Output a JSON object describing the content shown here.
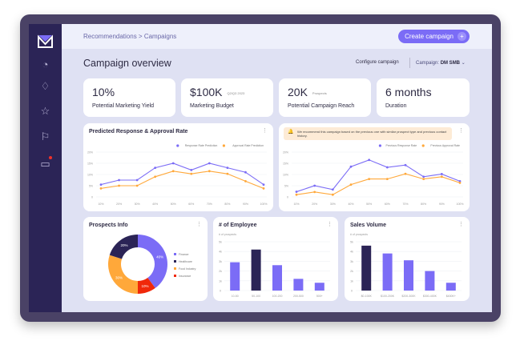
{
  "header": {
    "breadcrumb": "Recommendations > Campaigns",
    "create_label": "Create campaign",
    "create_icon": "plus-icon"
  },
  "page": {
    "title": "Campaign overview",
    "configure": "Configure campaign",
    "campaign_label": "Campaign:",
    "campaign_value": "DM SMB"
  },
  "sidebar": {
    "icons": [
      "logo",
      "speedometer-icon",
      "gem-icon",
      "star-icon",
      "flag-icon",
      "chat-icon"
    ],
    "notification_color": "#f0322a"
  },
  "kpis": [
    {
      "value": "10%",
      "sub": "",
      "label": "Potential Marketing Yield"
    },
    {
      "value": "$100K",
      "sub": "Q2/Q3 2023",
      "label": "Marketing Budget"
    },
    {
      "value": "20K",
      "sub": "Prospects",
      "label": "Potential Campaign Reach"
    },
    {
      "value": "6 months",
      "sub": "",
      "label": "Duration"
    }
  ],
  "recommendation": "We recommend this campaign based on the previous one with similar prospect type and previous contact history.",
  "colors": {
    "purple": "#7b6cf6",
    "orange": "#ffa83a",
    "dark": "#2b2456",
    "red": "#f0280a"
  },
  "chart_data": [
    {
      "type": "line",
      "title": "Predicted Response & Approval Rate",
      "categories": [
        "10%",
        "20%",
        "30%",
        "40%",
        "50%",
        "60%",
        "70%",
        "80%",
        "90%",
        "100%"
      ],
      "yticks": [
        "0",
        "5%",
        "10%",
        "15%",
        "20%"
      ],
      "ylim": [
        0,
        20
      ],
      "legend": "top-right",
      "series": [
        {
          "name": "Response Rate Prediction",
          "color": "#7b6cf6",
          "values": [
            5.5,
            7.5,
            7.5,
            13,
            15,
            12,
            15,
            13,
            11,
            5.5
          ]
        },
        {
          "name": "Approval Rate Prediction",
          "color": "#ffa83a",
          "values": [
            3.8,
            5,
            5,
            9,
            11.5,
            10.3,
            11.5,
            10.3,
            7,
            3.8
          ]
        }
      ]
    },
    {
      "type": "line",
      "title": "",
      "categories": [
        "10%",
        "20%",
        "30%",
        "40%",
        "50%",
        "60%",
        "70%",
        "80%",
        "90%",
        "100%"
      ],
      "yticks": [
        "0",
        "5%",
        "10%",
        "15%",
        "20%"
      ],
      "ylim": [
        0,
        20
      ],
      "legend": "top-right",
      "series": [
        {
          "name": "Previous Response Rate",
          "color": "#7b6cf6",
          "values": [
            2.3,
            5,
            3.3,
            13.5,
            16.5,
            13.2,
            14.2,
            9,
            10.2,
            7
          ]
        },
        {
          "name": "Previous Approval Rate",
          "color": "#ffa83a",
          "values": [
            1,
            2.2,
            1,
            5.5,
            8,
            8,
            10.3,
            8,
            9,
            6.3
          ]
        }
      ]
    },
    {
      "type": "pie",
      "title": "Prospects Info",
      "slices": [
        {
          "name": "Finance",
          "value": 40,
          "label": "40%",
          "color": "#7b6cf6"
        },
        {
          "name": "Insurance",
          "value": 10,
          "label": "10%",
          "color": "#f0280a"
        },
        {
          "name": "Food Industry",
          "value": 30,
          "label": "30%",
          "color": "#ffa83a"
        },
        {
          "name": "Healthcare",
          "value": 20,
          "label": "20%",
          "color": "#2b2456"
        }
      ]
    },
    {
      "type": "bar",
      "title": "# of Employee",
      "ylabel": "# of prospects",
      "categories": [
        "10-50",
        "50-100",
        "100-200",
        "200-500",
        "500+"
      ],
      "values": [
        2.9,
        4.2,
        2.6,
        1.2,
        0.8
      ],
      "highlight": 1,
      "yticks": [
        "0",
        "1k",
        "2k",
        "3k",
        "4k",
        "5k"
      ],
      "ylim": [
        0,
        5
      ]
    },
    {
      "type": "bar",
      "title": "Sales Volume",
      "ylabel": "# of prospects",
      "categories": [
        "$0-100K",
        "$100-200K",
        "$200-300K",
        "$300-400K",
        "$400K+"
      ],
      "values": [
        4.6,
        3.8,
        3.1,
        2,
        0.8
      ],
      "highlight": 0,
      "yticks": [
        "0",
        "1k",
        "2k",
        "3k",
        "4k",
        "5k"
      ],
      "ylim": [
        0,
        5
      ]
    }
  ]
}
